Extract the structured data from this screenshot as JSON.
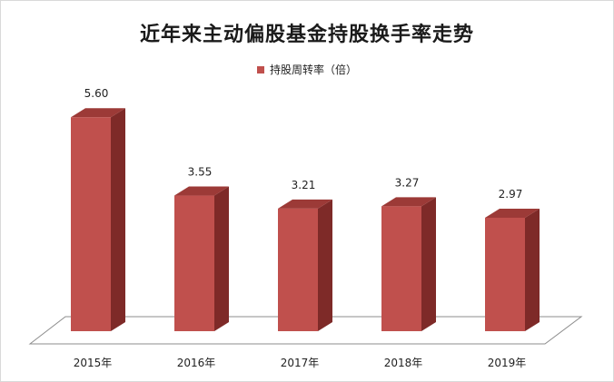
{
  "colors": {
    "front": "#c0504d",
    "side": "#7e2a28",
    "top": "#9c3a37",
    "floor": "#ffffff",
    "floor_stroke": "#8c8c8c"
  },
  "chart_data": {
    "type": "bar",
    "title": "近年来主动偏股基金持股换手率走势",
    "categories": [
      "2015年",
      "2016年",
      "2017年",
      "2018年",
      "2019年"
    ],
    "series": [
      {
        "name": "持股周转率（倍）",
        "values": [
          5.6,
          3.55,
          3.21,
          3.27,
          2.97
        ]
      }
    ],
    "value_labels": [
      "5.60",
      "3.55",
      "3.21",
      "3.27",
      "2.97"
    ],
    "ylim": [
      0,
      6
    ],
    "grid": false,
    "legend_position": "top-center",
    "style": "3d-column"
  }
}
